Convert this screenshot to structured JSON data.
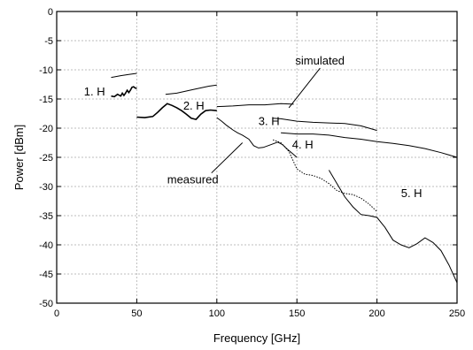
{
  "chart_data": {
    "type": "line",
    "title": "",
    "xlabel": "Frequency [GHz]",
    "ylabel": "Power [dBm]",
    "xlim": [
      0,
      250
    ],
    "ylim": [
      -50,
      0
    ],
    "x_ticks": [
      0,
      50,
      100,
      150,
      200,
      250
    ],
    "y_ticks": [
      0,
      -5,
      -10,
      -15,
      -20,
      -25,
      -30,
      -35,
      -40,
      -45,
      -50
    ],
    "grid": true,
    "annotations": [
      {
        "id": "h1",
        "text": "1. H",
        "x": 17,
        "y": -14.4
      },
      {
        "id": "h2",
        "text": "2. H",
        "x": 79,
        "y": -16.8
      },
      {
        "id": "h3",
        "text": "3. H",
        "x": 126,
        "y": -19.5
      },
      {
        "id": "h4",
        "text": "4. H",
        "x": 147,
        "y": -23.5
      },
      {
        "id": "h5",
        "text": "5. H",
        "x": 215,
        "y": -31.8
      },
      {
        "id": "simulated",
        "text": "simulated",
        "x": 149,
        "y": -9.1,
        "arrow_to": [
          145,
          -16.5
        ]
      },
      {
        "id": "measured",
        "text": "measured",
        "x": 69,
        "y": -29.5,
        "arrow_to": [
          116,
          -22.5
        ]
      }
    ],
    "series": [
      {
        "kind": "simulated",
        "harmonic": 1,
        "style": "solid",
        "x": [
          34,
          40,
          45,
          50
        ],
        "y": [
          -11.3,
          -11.0,
          -10.8,
          -10.6
        ]
      },
      {
        "kind": "simulated",
        "harmonic": 2,
        "style": "solid",
        "x": [
          68,
          75,
          85,
          95,
          100
        ],
        "y": [
          -14.2,
          -14.0,
          -13.4,
          -12.8,
          -12.6
        ]
      },
      {
        "kind": "simulated",
        "harmonic": 3,
        "style": "solid",
        "x": [
          100,
          110,
          120,
          130,
          140,
          148
        ],
        "y": [
          -16.3,
          -16.2,
          -16.0,
          -16.0,
          -15.8,
          -15.9
        ]
      },
      {
        "kind": "simulated",
        "harmonic": 4,
        "style": "solid",
        "x": [
          135,
          140,
          150,
          160,
          170,
          180,
          190,
          200
        ],
        "y": [
          -18.3,
          -18.4,
          -18.8,
          -19.0,
          -19.1,
          -19.2,
          -19.6,
          -20.4
        ]
      },
      {
        "kind": "simulated",
        "harmonic": 5,
        "style": "solid",
        "x": [
          140,
          150,
          160,
          170,
          180,
          190,
          200,
          210,
          220,
          230,
          240,
          250
        ],
        "y": [
          -20.8,
          -21.0,
          -21.0,
          -21.2,
          -21.6,
          -21.9,
          -22.3,
          -22.6,
          -23.0,
          -23.5,
          -24.2,
          -25.0
        ]
      },
      {
        "kind": "measured",
        "harmonic": 1,
        "style": "thick",
        "x": [
          34,
          36,
          38,
          40,
          41,
          42,
          43,
          44,
          45,
          46,
          47,
          48,
          49,
          50
        ],
        "y": [
          -14.5,
          -14.6,
          -14.2,
          -14.5,
          -14.0,
          -14.4,
          -14.0,
          -13.5,
          -13.9,
          -13.5,
          -13.0,
          -12.9,
          -13.1,
          -13.2
        ]
      },
      {
        "kind": "measured",
        "harmonic": 2,
        "style": "thick",
        "x": [
          50,
          55,
          60,
          63,
          66,
          69,
          72,
          75,
          78,
          81,
          84,
          87,
          90,
          93,
          96,
          100
        ],
        "y": [
          -18.1,
          -18.2,
          -18.0,
          -17.3,
          -16.5,
          -15.8,
          -16.1,
          -16.5,
          -17.0,
          -17.6,
          -18.3,
          -18.5,
          -17.6,
          -17.0,
          -16.9,
          -17.0
        ]
      },
      {
        "kind": "measured",
        "harmonic": 3,
        "style": "solid",
        "x": [
          100,
          103,
          106,
          110,
          113,
          116,
          120,
          123,
          126,
          129,
          132,
          135,
          138,
          141,
          144,
          147,
          150
        ],
        "y": [
          -18.2,
          -18.8,
          -19.5,
          -20.3,
          -20.8,
          -21.2,
          -21.9,
          -23.0,
          -23.4,
          -23.3,
          -23.0,
          -22.7,
          -22.4,
          -22.8,
          -23.6,
          -24.3,
          -25.0
        ]
      },
      {
        "kind": "measured",
        "harmonic": 4,
        "style": "dotted",
        "x": [
          135,
          140,
          145,
          150,
          155,
          160,
          165,
          170,
          175,
          180,
          185,
          190,
          195,
          200
        ],
        "y": [
          -22.0,
          -22.5,
          -24.0,
          -27.0,
          -27.9,
          -28.1,
          -28.6,
          -29.5,
          -30.7,
          -31.2,
          -31.4,
          -32.0,
          -33.0,
          -34.3
        ]
      },
      {
        "kind": "measured",
        "harmonic": 5,
        "style": "solid",
        "x": [
          170,
          175,
          180,
          185,
          190,
          195,
          200,
          205,
          210,
          215,
          220,
          225,
          230,
          235,
          240,
          245,
          250
        ],
        "y": [
          -27.2,
          -29.5,
          -31.8,
          -33.5,
          -34.8,
          -35.0,
          -35.3,
          -37.0,
          -39.2,
          -40.0,
          -40.5,
          -39.8,
          -38.8,
          -39.6,
          -41.0,
          -43.5,
          -46.5
        ]
      }
    ]
  }
}
